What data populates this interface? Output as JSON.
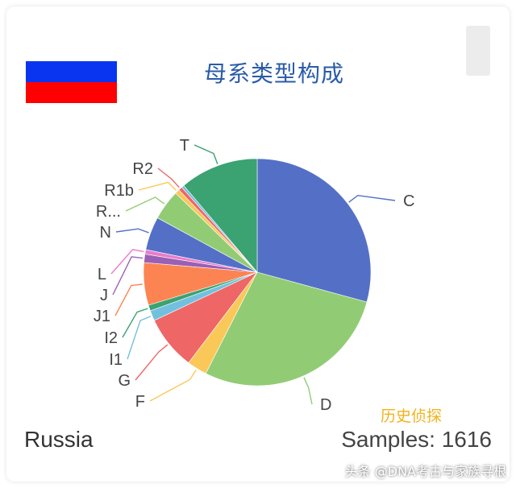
{
  "header": {
    "title": "母系类型构成",
    "flag_colors": [
      "#ffffff",
      "#0a35f0",
      "#ff0000"
    ]
  },
  "footer": {
    "country": "Russia",
    "samples": "Samples: 1616",
    "watermark": "历史侦探",
    "source": "头条 @DNA考古与家族寻根"
  },
  "chart_data": {
    "type": "pie",
    "title": "母系类型构成",
    "start_angle_deg": 0,
    "direction": "clockwise",
    "slices": [
      {
        "label": "C",
        "value": 31.9,
        "color": "#5470c6"
      },
      {
        "label": "D",
        "value": 30.8,
        "color": "#91cc75"
      },
      {
        "label": "F",
        "value": 3.1,
        "color": "#fac858"
      },
      {
        "label": "G",
        "value": 8.4,
        "color": "#ee6666"
      },
      {
        "label": "I1",
        "value": 1.6,
        "color": "#73c0de"
      },
      {
        "label": "I2",
        "value": 0.9,
        "color": "#3ba272"
      },
      {
        "label": "J1",
        "value": 6.6,
        "color": "#fc8452"
      },
      {
        "label": "J",
        "value": 1.3,
        "color": "#9a60b4"
      },
      {
        "label": "L",
        "value": 0.7,
        "color": "#ea7ccc"
      },
      {
        "label": "N",
        "value": 5.2,
        "color": "#5470c6"
      },
      {
        "label": "R...",
        "value": 4.7,
        "color": "#91cc75"
      },
      {
        "label": "R1b",
        "value": 0.7,
        "color": "#fac858"
      },
      {
        "label": "R2",
        "value": 0.6,
        "color": "#ee6666"
      },
      {
        "label": "",
        "value": 0.4,
        "color": "#73c0de"
      },
      {
        "label": "T",
        "value": 12.2,
        "color": "#3ba272"
      }
    ]
  }
}
